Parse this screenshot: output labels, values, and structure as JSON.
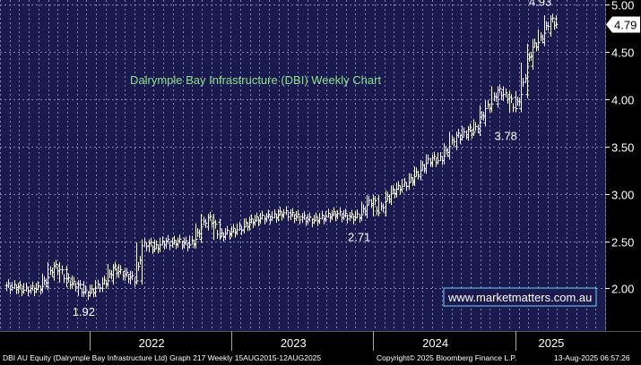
{
  "colors": {
    "plot_bg": "#1a1a4e",
    "axis_bg": "#000000",
    "grid": "#7f86b4",
    "price": "#ffffff",
    "title": "#8be28b",
    "watermark_border": "#6fd3ff"
  },
  "chart_data": {
    "type": "line",
    "title": "Dalrymple Bay Infrastructure (DBI) Weekly Chart",
    "xlabel": "",
    "ylabel": "",
    "ylim": [
      1.55,
      5.05
    ],
    "y_ticks": [
      2.0,
      2.5,
      3.0,
      3.5,
      4.0,
      4.5,
      5.0
    ],
    "y_tick_labels": [
      "2.00",
      "2.50",
      "3.00",
      "3.50",
      "4.00",
      "4.50",
      "5.00"
    ],
    "x_tick_labels": [
      "2022",
      "2023",
      "2024",
      "2025"
    ],
    "grid": true,
    "frequency": "Weekly",
    "series": [
      {
        "points": [
          [
            "2021-06-01",
            2.03
          ],
          [
            "2021-06-15",
            2.01
          ],
          [
            "2021-07-01",
            2.02
          ],
          [
            "2021-07-15",
            1.98
          ],
          [
            "2021-08-01",
            2.0
          ],
          [
            "2021-08-15",
            1.99
          ],
          [
            "2021-09-01",
            2.02
          ],
          [
            "2021-09-15",
            2.12
          ],
          [
            "2021-10-01",
            2.24
          ],
          [
            "2021-10-15",
            2.2
          ],
          [
            "2021-11-01",
            2.1
          ],
          [
            "2021-11-15",
            2.05
          ],
          [
            "2021-12-01",
            2.04
          ],
          [
            "2021-12-15",
            1.96
          ],
          [
            "2022-01-01",
            1.95
          ],
          [
            "2022-01-15",
            2.0
          ],
          [
            "2022-02-01",
            2.05
          ],
          [
            "2022-02-15",
            2.08
          ],
          [
            "2022-03-01",
            2.22
          ],
          [
            "2022-03-15",
            2.18
          ],
          [
            "2022-04-01",
            2.15
          ],
          [
            "2022-04-15",
            2.12
          ],
          [
            "2022-05-01",
            2.08
          ],
          [
            "2022-05-15",
            2.45
          ],
          [
            "2022-06-01",
            2.48
          ],
          [
            "2022-06-15",
            2.42
          ],
          [
            "2022-07-01",
            2.46
          ],
          [
            "2022-07-15",
            2.5
          ],
          [
            "2022-08-01",
            2.47
          ],
          [
            "2022-08-15",
            2.5
          ],
          [
            "2022-09-01",
            2.48
          ],
          [
            "2022-09-15",
            2.46
          ],
          [
            "2022-10-01",
            2.52
          ],
          [
            "2022-10-15",
            2.65
          ],
          [
            "2022-11-01",
            2.75
          ],
          [
            "2022-11-15",
            2.7
          ],
          [
            "2022-12-01",
            2.55
          ],
          [
            "2022-12-15",
            2.58
          ],
          [
            "2023-01-01",
            2.6
          ],
          [
            "2023-01-15",
            2.62
          ],
          [
            "2023-02-01",
            2.65
          ],
          [
            "2023-02-15",
            2.7
          ],
          [
            "2023-03-01",
            2.72
          ],
          [
            "2023-03-15",
            2.74
          ],
          [
            "2023-04-01",
            2.76
          ],
          [
            "2023-04-15",
            2.75
          ],
          [
            "2023-05-01",
            2.78
          ],
          [
            "2023-05-15",
            2.8
          ],
          [
            "2023-06-01",
            2.78
          ],
          [
            "2023-06-15",
            2.76
          ],
          [
            "2023-07-01",
            2.75
          ],
          [
            "2023-07-15",
            2.73
          ],
          [
            "2023-08-01",
            2.72
          ],
          [
            "2023-08-15",
            2.74
          ],
          [
            "2023-09-01",
            2.76
          ],
          [
            "2023-09-15",
            2.78
          ],
          [
            "2023-10-01",
            2.79
          ],
          [
            "2023-10-15",
            2.77
          ],
          [
            "2023-11-01",
            2.76
          ],
          [
            "2023-11-15",
            2.75
          ],
          [
            "2023-12-01",
            2.78
          ],
          [
            "2023-12-15",
            2.88
          ],
          [
            "2024-01-01",
            2.95
          ],
          [
            "2024-01-15",
            2.8
          ],
          [
            "2024-02-01",
            2.92
          ],
          [
            "2024-02-15",
            3.0
          ],
          [
            "2024-03-01",
            3.05
          ],
          [
            "2024-03-15",
            3.08
          ],
          [
            "2024-04-01",
            3.12
          ],
          [
            "2024-04-15",
            3.18
          ],
          [
            "2024-05-01",
            3.25
          ],
          [
            "2024-05-15",
            3.32
          ],
          [
            "2024-06-01",
            3.38
          ],
          [
            "2024-06-15",
            3.35
          ],
          [
            "2024-07-01",
            3.4
          ],
          [
            "2024-07-15",
            3.5
          ],
          [
            "2024-08-01",
            3.62
          ],
          [
            "2024-08-15",
            3.6
          ],
          [
            "2024-09-01",
            3.68
          ],
          [
            "2024-09-15",
            3.65
          ],
          [
            "2024-10-01",
            3.75
          ],
          [
            "2024-10-15",
            3.9
          ],
          [
            "2024-11-01",
            3.95
          ],
          [
            "2024-11-15",
            4.1
          ],
          [
            "2024-12-01",
            4.05
          ],
          [
            "2024-12-15",
            4.02
          ],
          [
            "2025-01-01",
            3.9
          ],
          [
            "2025-01-15",
            4.05
          ],
          [
            "2025-02-01",
            4.35
          ],
          [
            "2025-02-15",
            4.55
          ],
          [
            "2025-03-01",
            4.6
          ],
          [
            "2025-03-15",
            4.7
          ],
          [
            "2025-04-01",
            4.85
          ],
          [
            "2025-04-15",
            4.79
          ]
        ]
      }
    ],
    "annotations": [
      {
        "text": "1.92",
        "x": "2021-12-15",
        "y": 1.92
      },
      {
        "text": "2.71",
        "x": "2023-11-15",
        "y": 2.71
      },
      {
        "text": "3.78",
        "x": "2024-12-15",
        "y": 3.78
      },
      {
        "text": "4.93",
        "x": "2025-04-01",
        "y": 4.93
      }
    ],
    "last_price": {
      "text": "4.79",
      "y": 4.79
    }
  },
  "watermark": "www.marketmatters.com.au",
  "footer": {
    "left": "DBI AU Equity (Dalrymple Bay Infrastructure Ltd) Graph 217  Weekly 15AUG2015-12AUG2025",
    "center": "Copyright© 2025 Bloomberg Finance L.P.",
    "right": "13-Aug-2025 06:57:26"
  }
}
